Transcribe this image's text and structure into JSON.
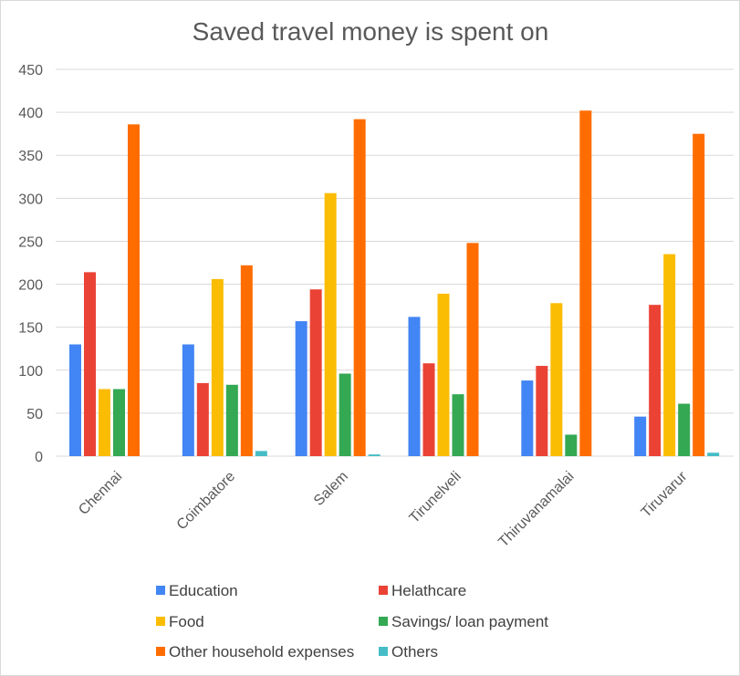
{
  "chart_data": {
    "type": "bar",
    "title": "Saved travel money is spent on",
    "xlabel": "",
    "ylabel": "",
    "ylim": [
      0,
      450
    ],
    "yticks": [
      0,
      50,
      100,
      150,
      200,
      250,
      300,
      350,
      400,
      450
    ],
    "grid": true,
    "legend_position": "bottom",
    "categories": [
      "Chennai",
      "Coimbatore",
      "Salem",
      "Tirunelveli",
      "Thiruvanamalai",
      "Tiruvarur"
    ],
    "series": [
      {
        "name": "Education",
        "color": "#4285f4",
        "values": [
          130,
          130,
          157,
          162,
          88,
          46
        ]
      },
      {
        "name": "Helathcare",
        "color": "#ea4335",
        "values": [
          214,
          85,
          194,
          108,
          105,
          176
        ]
      },
      {
        "name": "Food",
        "color": "#fbbc04",
        "values": [
          78,
          206,
          306,
          189,
          178,
          235
        ]
      },
      {
        "name": "Savings/ loan payment",
        "color": "#34a853",
        "values": [
          78,
          83,
          96,
          72,
          25,
          61
        ]
      },
      {
        "name": "Other household expenses",
        "color": "#ff6d01",
        "values": [
          386,
          222,
          392,
          248,
          402,
          375
        ]
      },
      {
        "name": "Others",
        "color": "#46bdc6",
        "values": [
          0,
          6,
          2,
          0,
          0,
          4
        ]
      }
    ]
  }
}
